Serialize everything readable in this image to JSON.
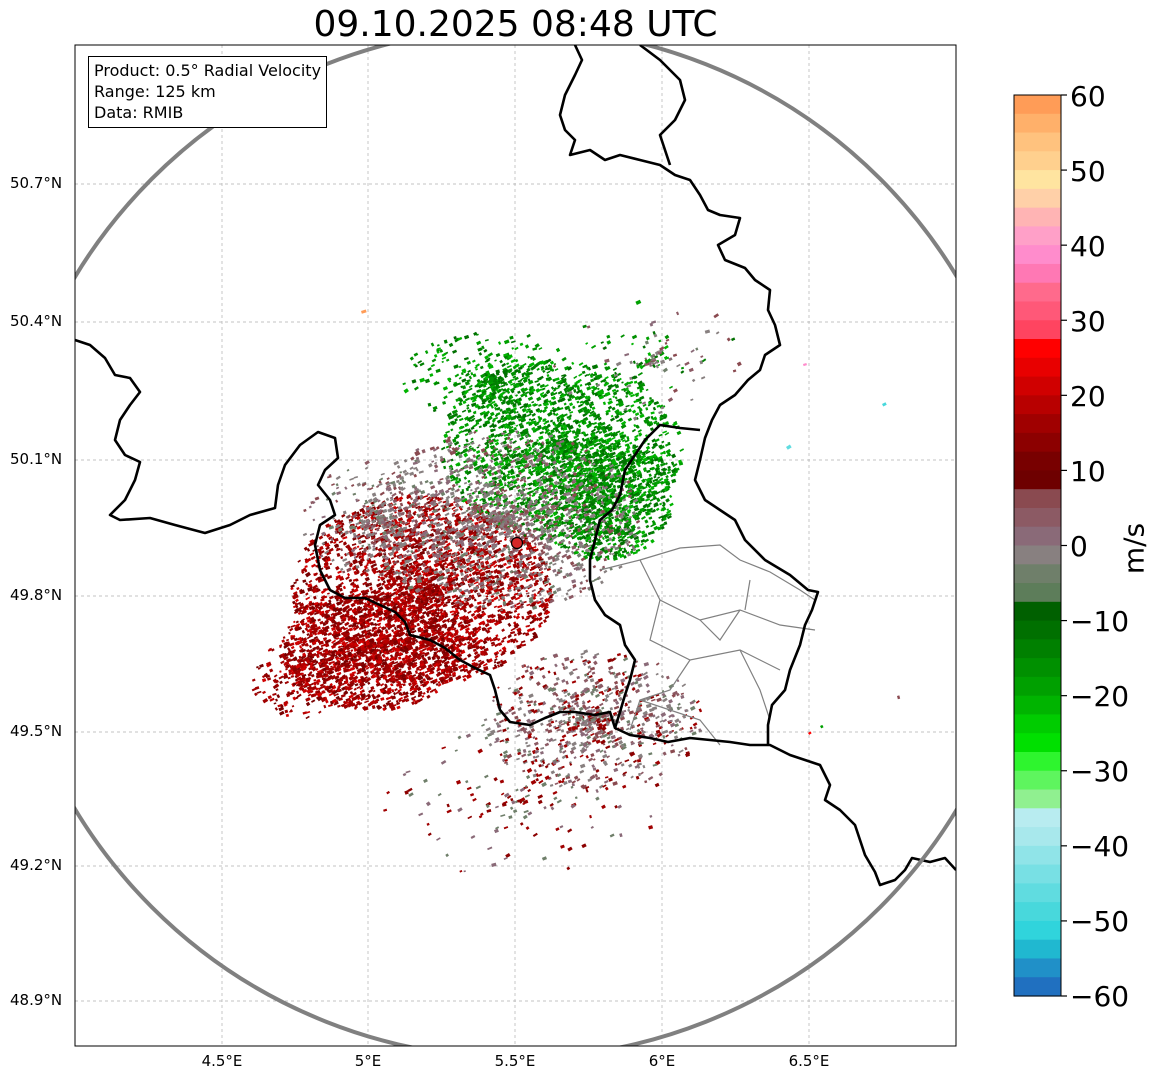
{
  "title": "09.10.2025 08:48 UTC",
  "info_box": {
    "product": "Product: 0.5° Radial Velocity",
    "range": "Range: 125 km",
    "data": "Data: RMIB"
  },
  "lat_labels": [
    "50.7°N",
    "50.4°N",
    "50.1°N",
    "49.8°N",
    "49.5°N",
    "49.2°N",
    "48.9°N"
  ],
  "lon_labels": [
    "4.5°E",
    "5°E",
    "5.5°E",
    "6°E",
    "6.5°E"
  ],
  "colorbar": {
    "unit": "m/s",
    "ticks": [
      "60",
      "50",
      "40",
      "30",
      "20",
      "10",
      "0",
      "−10",
      "−20",
      "−30",
      "−40",
      "−50",
      "−60"
    ],
    "min": -60,
    "max": 60
  },
  "colors": {
    "range_ring": "#808080",
    "border": "#000000",
    "radar_marker": "#d62728",
    "inbound": "#00a000",
    "outbound": "#a00000",
    "near_zero": "#808080"
  }
}
